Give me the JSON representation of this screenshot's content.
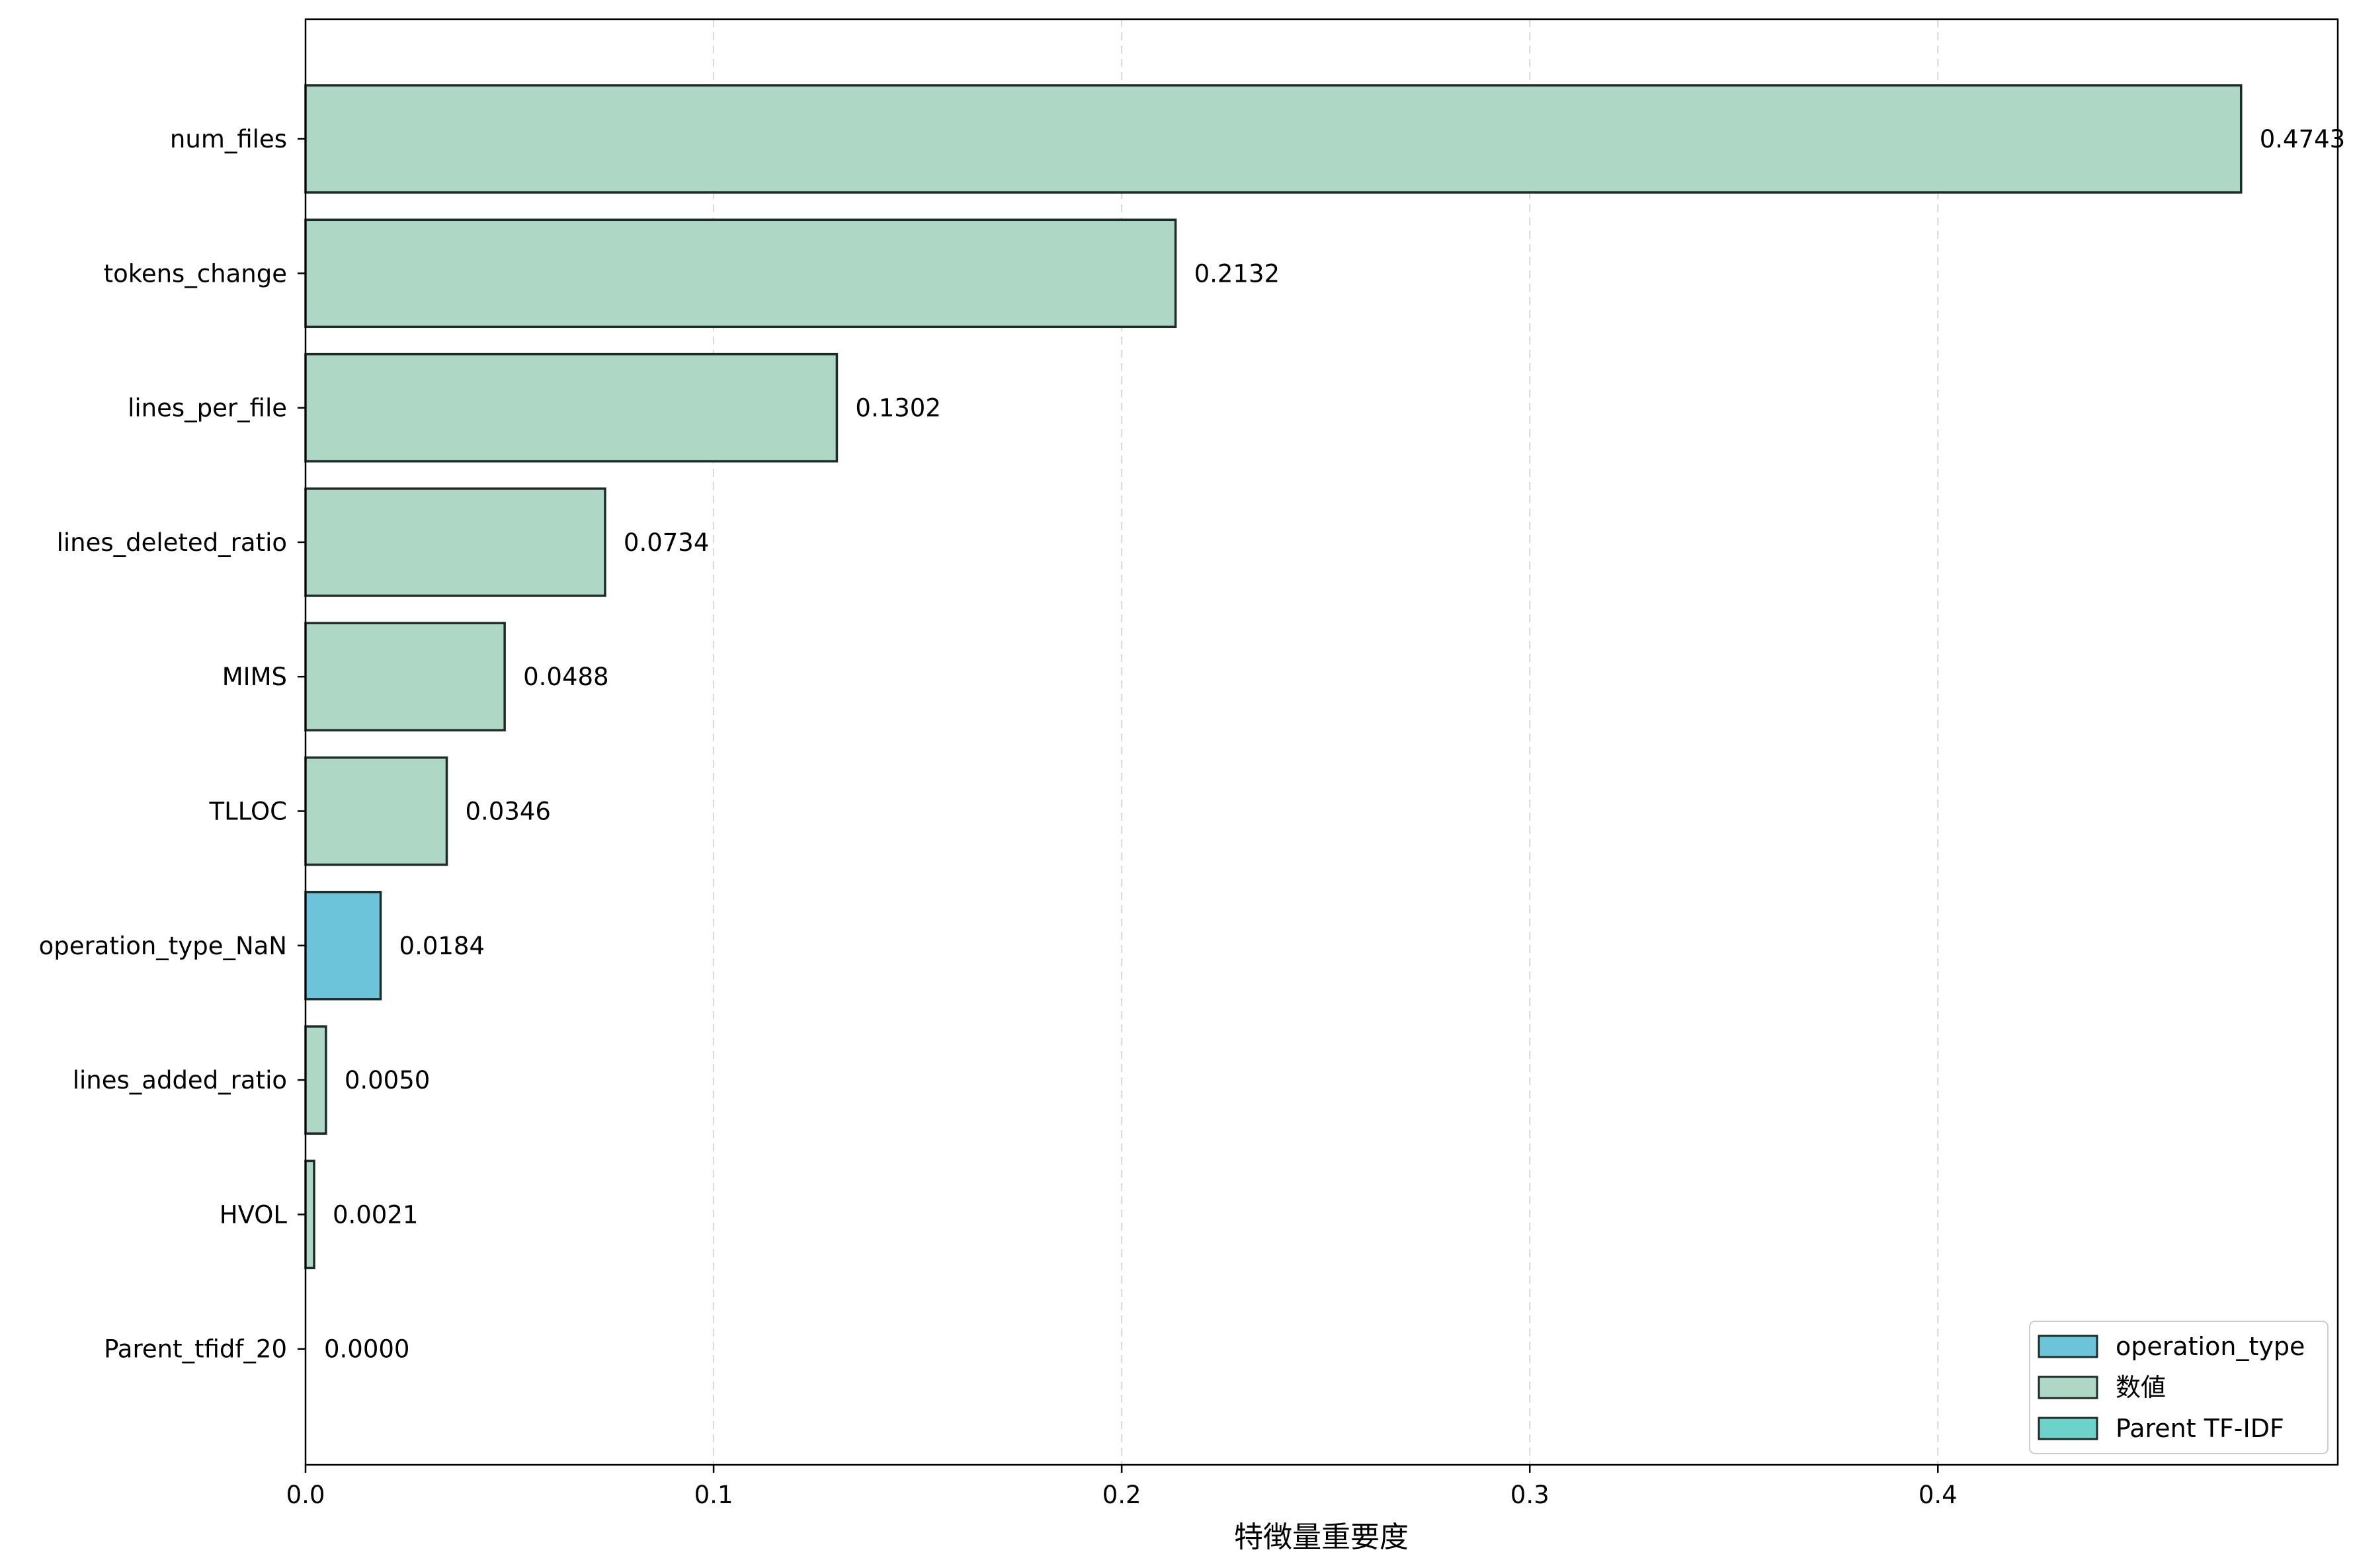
{
  "chart_data": {
    "type": "bar",
    "orientation": "horizontal",
    "title": "",
    "xlabel": "特徴量重要度",
    "ylabel": "",
    "xlim": [
      0,
      0.498
    ],
    "xticks": [
      0.0,
      0.1,
      0.2,
      0.3,
      0.4
    ],
    "xtick_labels": [
      "0.0",
      "0.1",
      "0.2",
      "0.3",
      "0.4"
    ],
    "grid": "x, dashed",
    "legend_position": "lower-right",
    "categories": [
      "num_files",
      "tokens_change",
      "lines_per_file",
      "lines_deleted_ratio",
      "MIMS",
      "TLLOC",
      "operation_type_NaN",
      "lines_added_ratio",
      "HVOL",
      "Parent_tfidf_20"
    ],
    "values": [
      0.4743,
      0.2132,
      0.1302,
      0.0734,
      0.0488,
      0.0346,
      0.0184,
      0.005,
      0.0021,
      0.0
    ],
    "value_labels": [
      "0.4743",
      "0.2132",
      "0.1302",
      "0.0734",
      "0.0488",
      "0.0346",
      "0.0184",
      "0.0050",
      "0.0021",
      "0.0000"
    ],
    "groups": [
      "数値",
      "数値",
      "数値",
      "数値",
      "数値",
      "数値",
      "operation_type",
      "数値",
      "数値",
      "Parent TF-IDF"
    ],
    "legend": [
      {
        "name": "operation_type",
        "color": "#6cc4da"
      },
      {
        "name": "数値",
        "color": "#aed7c5"
      },
      {
        "name": "Parent TF-IDF",
        "color": "#6dd2c9"
      }
    ],
    "colors": {
      "数値": "#aed7c5",
      "operation_type": "#6cc4da",
      "Parent TF-IDF": "#6dd2c9",
      "edge": "#1f2b27",
      "grid": "#d9d9d9"
    }
  }
}
